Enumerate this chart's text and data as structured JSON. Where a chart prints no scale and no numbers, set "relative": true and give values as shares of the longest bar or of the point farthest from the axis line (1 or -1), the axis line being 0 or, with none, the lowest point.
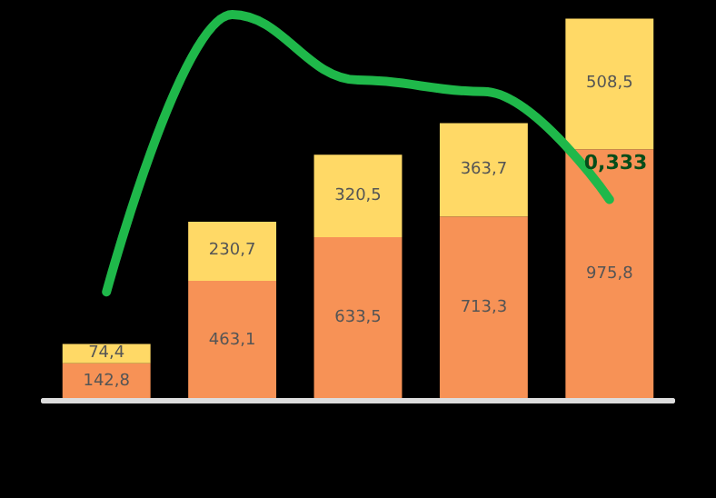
{
  "chart_data": [
    {
      "type": "bar",
      "stacked": true,
      "categories": [
        null,
        null,
        null,
        null,
        null
      ],
      "series": [
        {
          "color": "#f79256",
          "values": [
            142.8,
            463.1,
            633.5,
            713.3,
            975.8
          ],
          "value_labels": [
            "142,8",
            "463,1",
            "633,5",
            "713,3",
            "975,8"
          ]
        },
        {
          "color": "#ffd966",
          "values": [
            74.4,
            230.7,
            320.5,
            363.7,
            508.5
          ],
          "value_labels": [
            "74,4",
            "230,7",
            "320,5",
            "363,7",
            "508,5"
          ]
        }
      ],
      "tick_labels": false
    },
    {
      "type": "line",
      "relative": true,
      "categories": [
        null,
        null,
        null,
        null,
        null
      ],
      "series": [
        {
          "color": "#1fb84a",
          "values": [
            0.28,
            1,
            0.83,
            0.8,
            0.52
          ]
        }
      ],
      "annotations": [
        "0,333"
      ],
      "tick_labels": false
    }
  ]
}
